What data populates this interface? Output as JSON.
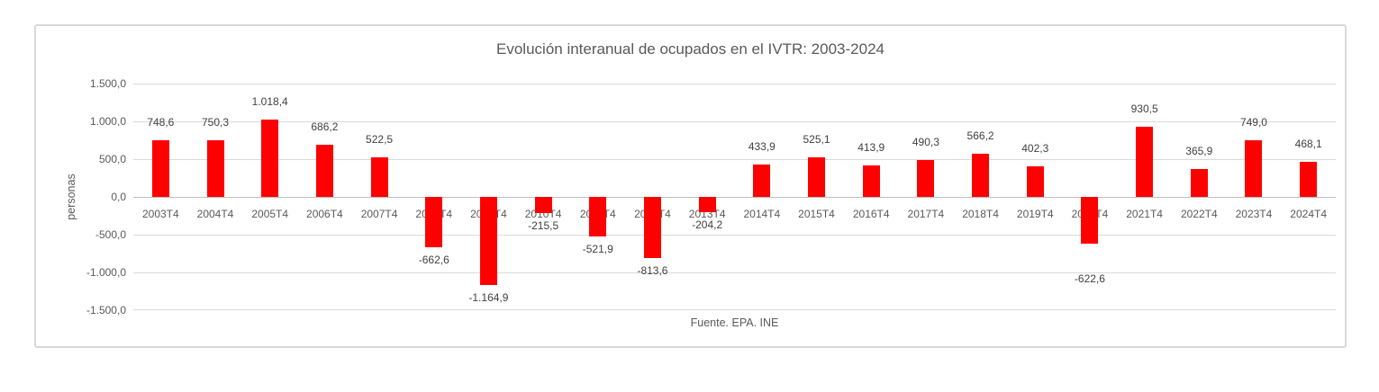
{
  "chart_data": {
    "type": "bar",
    "title": "Evolución interanual de ocupados en el IVTR: 2003-2024",
    "ylabel": "personas",
    "xlabel": "",
    "source": "Fuente. EPA. INE",
    "categories": [
      "2003T4",
      "2004T4",
      "2005T4",
      "2006T4",
      "2007T4",
      "2008T4",
      "2009T4",
      "2010T4",
      "2011T4",
      "2012T4",
      "2013T4",
      "2014T4",
      "2015T4",
      "2016T4",
      "2017T4",
      "2018T4",
      "2019T4",
      "2020T4",
      "2021T4",
      "2022T4",
      "2023T4",
      "2024T4"
    ],
    "values": [
      748.6,
      750.3,
      1018.4,
      686.2,
      522.5,
      -662.6,
      -1164.9,
      -215.5,
      -521.9,
      -813.6,
      -204.2,
      433.9,
      525.1,
      413.9,
      490.3,
      566.2,
      402.3,
      -622.6,
      930.5,
      365.9,
      749.0,
      468.1
    ],
    "value_labels": [
      "748,6",
      "750,3",
      "1.018,4",
      "686,2",
      "522,5",
      "-662,6",
      "-1.164,9",
      "-215,5",
      "-521,9",
      "-813,6",
      "-204,2",
      "433,9",
      "525,1",
      "413,9",
      "490,3",
      "566,2",
      "402,3",
      "-622,6",
      "930,5",
      "365,9",
      "749,0",
      "468,1"
    ],
    "ylim": [
      -1500,
      1500
    ],
    "y_ticks": [
      1500,
      1000,
      500,
      0,
      -500,
      -1000,
      -1500
    ],
    "y_tick_labels": [
      "1.500,0",
      "1.000,0",
      "500,0",
      "0,0",
      "-500,0",
      "-1.000,0",
      "-1.500,0"
    ],
    "grid": "horizontal",
    "legend": "none",
    "bar_color": "#ff0000",
    "grid_color": "#d9d9d9",
    "axis_line_color": "#bfbfbf",
    "axis_text_color": "#595959",
    "data_label_color": "#404040",
    "title_color": "#595959",
    "frame_border_color": "#d9d9d9",
    "label_dy": {
      "2020T4": 25
    }
  }
}
